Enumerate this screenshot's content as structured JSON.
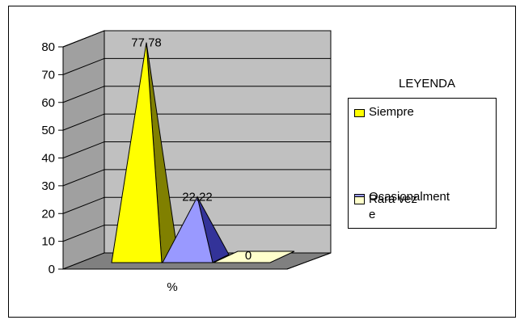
{
  "chart_data": {
    "type": "bar",
    "style": "3d-pyramid",
    "categories": [
      "%"
    ],
    "xlabel": "",
    "ylabel": "",
    "ylim": [
      0,
      80
    ],
    "yticks": [
      0,
      10,
      20,
      30,
      40,
      50,
      60,
      70,
      80
    ],
    "grid": true,
    "legend_position": "right",
    "legend_title": "LEYENDA",
    "series": [
      {
        "name": "Siempre",
        "label_lines": [
          "Siempre"
        ],
        "values": [
          77.78
        ],
        "data_label": "77.78",
        "color": "#FFFF00",
        "side_color": "#808000"
      },
      {
        "name": "Ocasionalmente",
        "label_lines": [
          "Ocasionalment",
          "e"
        ],
        "values": [
          22.22
        ],
        "data_label": "22.22",
        "color": "#9999FF",
        "side_color": "#333399"
      },
      {
        "name": "Rara vez",
        "label_lines": [
          "Rara vez"
        ],
        "values": [
          0
        ],
        "data_label": "0",
        "color": "#FFFFCC",
        "side_color": "#CCCC99"
      }
    ],
    "colors": {
      "wall": "#C0C0C0",
      "side_wall": "#A0A0A0",
      "floor": "#808080",
      "grid": "#000000"
    }
  }
}
